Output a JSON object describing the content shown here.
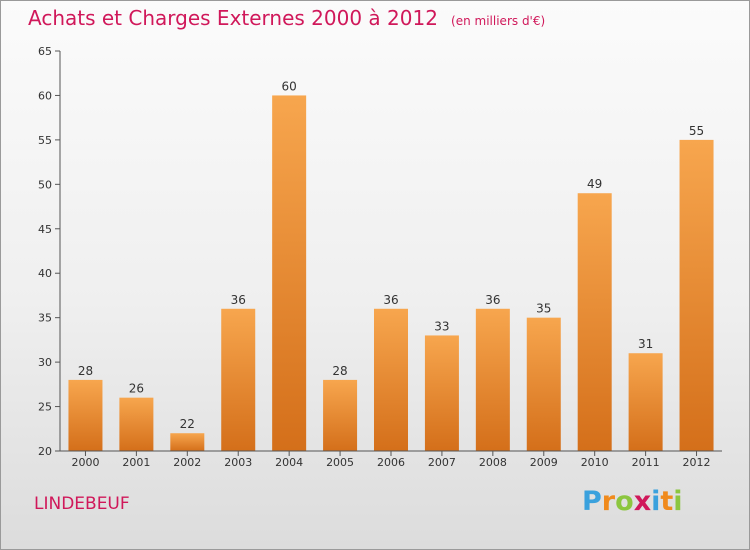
{
  "title": {
    "main": "Achats et Charges Externes 2000 à 2012",
    "unit": "(en milliers d'€)"
  },
  "commune": "LINDEBEUF",
  "logo": {
    "letters": [
      "P",
      "r",
      "o",
      "x",
      "i",
      "t",
      "i"
    ]
  },
  "colors": {
    "accent": "#d0185a",
    "bar_light": "#f7a64e",
    "bar_dark": "#d46f1a",
    "axis": "#555555"
  },
  "chart_data": {
    "type": "bar",
    "categories": [
      "2000",
      "2001",
      "2002",
      "2003",
      "2004",
      "2005",
      "2006",
      "2007",
      "2008",
      "2009",
      "2010",
      "2011",
      "2012"
    ],
    "values": [
      28,
      26,
      22,
      36,
      60,
      28,
      36,
      33,
      36,
      35,
      49,
      31,
      55
    ],
    "ylim": [
      20,
      65
    ],
    "yticks": [
      20,
      25,
      30,
      35,
      40,
      45,
      50,
      55,
      60,
      65
    ],
    "grid": false,
    "xlabel": "",
    "ylabel": ""
  }
}
